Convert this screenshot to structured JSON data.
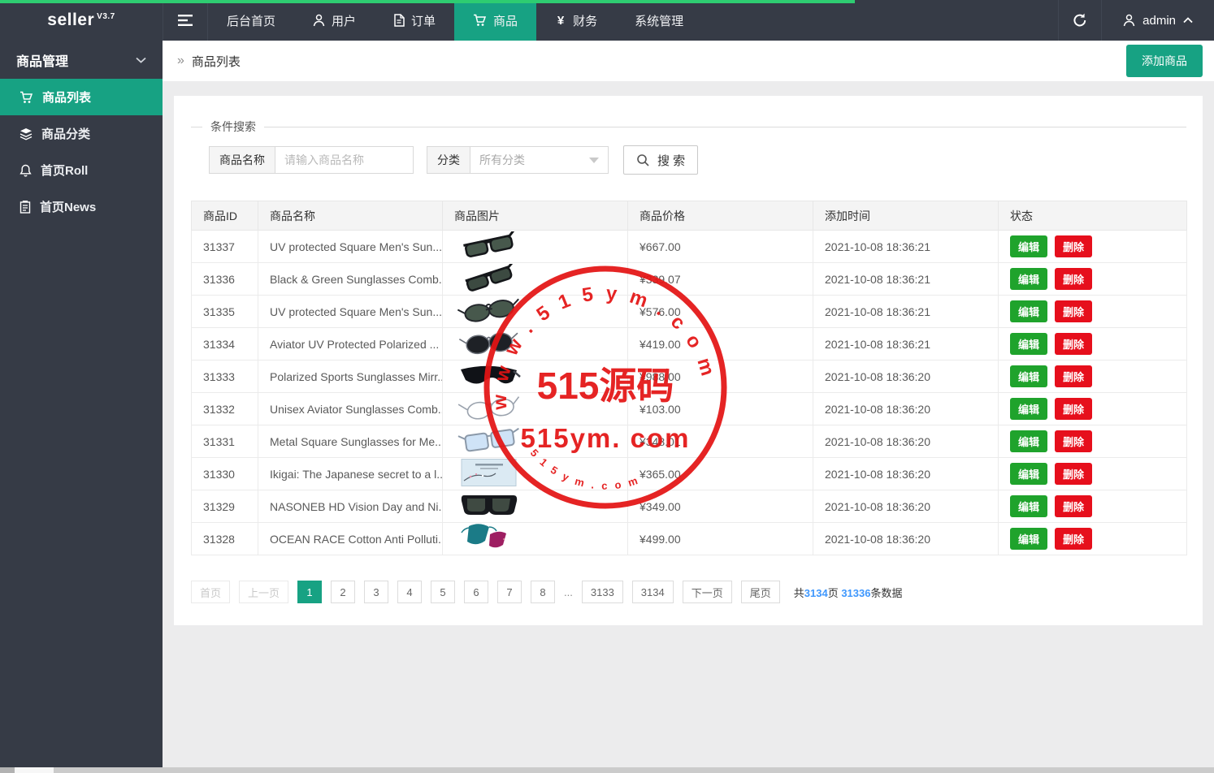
{
  "navbar": {
    "logo": "seller",
    "version": "V3.7",
    "items": [
      {
        "key": "dashboard",
        "label": "后台首页",
        "icon": null,
        "active": false
      },
      {
        "key": "users",
        "label": "用户",
        "icon": "user-icon",
        "active": false
      },
      {
        "key": "orders",
        "label": "订单",
        "icon": "file-icon",
        "active": false
      },
      {
        "key": "products",
        "label": "商品",
        "icon": "cart-icon",
        "active": true
      },
      {
        "key": "finance",
        "label": "财务",
        "icon": "yen-icon",
        "active": false
      },
      {
        "key": "system",
        "label": "系统管理",
        "icon": null,
        "active": false
      }
    ],
    "user": "admin"
  },
  "sidebar": {
    "header": "商品管理",
    "items": [
      {
        "key": "product-list",
        "label": "商品列表",
        "icon": "cart-icon",
        "active": true
      },
      {
        "key": "product-category",
        "label": "商品分类",
        "icon": "layers-icon",
        "active": false
      },
      {
        "key": "home-roll",
        "label": "首页Roll",
        "icon": "bell-icon",
        "active": false
      },
      {
        "key": "home-news",
        "label": "首页News",
        "icon": "news-icon",
        "active": false
      }
    ]
  },
  "page": {
    "breadcrumb_marker": "»",
    "breadcrumb": "商品列表",
    "add_button": "添加商品"
  },
  "search": {
    "legend": "条件搜索",
    "name_label": "商品名称",
    "name_placeholder": "请输入商品名称",
    "category_label": "分类",
    "category_value": "所有分类",
    "button": "搜 索"
  },
  "table": {
    "columns": [
      "商品ID",
      "商品名称",
      "商品图片",
      "商品价格",
      "添加时间",
      "状态"
    ],
    "actions": {
      "edit": "编辑",
      "delete": "删除"
    },
    "rows": [
      {
        "id": "31337",
        "name": "UV protected Square Men's Sun...",
        "image": "sunglasses-wayfarer",
        "price": "¥667.00",
        "time": "2021-10-08 18:36:21"
      },
      {
        "id": "31336",
        "name": "Black & Green Sunglasses Comb...",
        "image": "sunglasses-wayfarer-tilted",
        "price": "¥339.07",
        "time": "2021-10-08 18:36:21"
      },
      {
        "id": "31335",
        "name": "UV protected Square Men's Sun...",
        "image": "sunglasses-double-bridge",
        "price": "¥576.00",
        "time": "2021-10-08 18:36:21"
      },
      {
        "id": "31334",
        "name": "Aviator UV Protected Polarized ...",
        "image": "sunglasses-aviator-dark",
        "price": "¥419.00",
        "time": "2021-10-08 18:36:21"
      },
      {
        "id": "31333",
        "name": "Polarized Sports Sunglasses Mirr...",
        "image": "sunglasses-sport-wrap",
        "price": "¥988.00",
        "time": "2021-10-08 18:36:20"
      },
      {
        "id": "31332",
        "name": "Unisex Aviator Sunglasses Comb...",
        "image": "glasses-wire-frame",
        "price": "¥103.00",
        "time": "2021-10-08 18:36:20"
      },
      {
        "id": "31331",
        "name": "Metal Square Sunglasses for Me...",
        "image": "sunglasses-square-blue",
        "price": "¥348.01",
        "time": "2021-10-08 18:36:20"
      },
      {
        "id": "31330",
        "name": "Ikigai: The Japanese secret to a l...",
        "image": "book-cover-blue",
        "price": "¥365.00",
        "time": "2021-10-08 18:36:20"
      },
      {
        "id": "31329",
        "name": "NASONEB HD Vision Day and Ni...",
        "image": "sunglasses-fitover",
        "price": "¥349.00",
        "time": "2021-10-08 18:36:20"
      },
      {
        "id": "31328",
        "name": "OCEAN RACE Cotton Anti Polluti...",
        "image": "face-masks-two",
        "price": "¥499.00",
        "time": "2021-10-08 18:36:20"
      }
    ]
  },
  "pagination": {
    "items": [
      {
        "label": "首页",
        "state": "disabled"
      },
      {
        "label": "上一页",
        "state": "disabled"
      },
      {
        "label": "1",
        "state": "active"
      },
      {
        "label": "2",
        "state": "normal"
      },
      {
        "label": "3",
        "state": "normal"
      },
      {
        "label": "4",
        "state": "normal"
      },
      {
        "label": "5",
        "state": "normal"
      },
      {
        "label": "6",
        "state": "normal"
      },
      {
        "label": "7",
        "state": "normal"
      },
      {
        "label": "8",
        "state": "normal"
      },
      {
        "label": "...",
        "state": "ellipsis"
      },
      {
        "label": "3133",
        "state": "normal"
      },
      {
        "label": "3134",
        "state": "normal"
      },
      {
        "label": "下一页",
        "state": "normal"
      },
      {
        "label": "尾页",
        "state": "normal"
      }
    ],
    "summary": {
      "prefix": "共",
      "pages": "3134",
      "pages_unit": "页 ",
      "total": "31336",
      "total_unit": "条数据"
    }
  },
  "watermark": {
    "top_text": "w w w . 5 1 5 y m . c o m",
    "center_text": "515源码",
    "sub_text": "515ym. com",
    "bottom_text": "5 1 5 y m . c o m"
  },
  "colors": {
    "accent_teal": "#17a283",
    "progress_green": "#2ecc71",
    "edit_green": "#1fa32c",
    "delete_red": "#e60f1c",
    "link_blue": "#3e97fd",
    "stamp_red": "#e41414",
    "topbar_dark": "#363b46"
  }
}
